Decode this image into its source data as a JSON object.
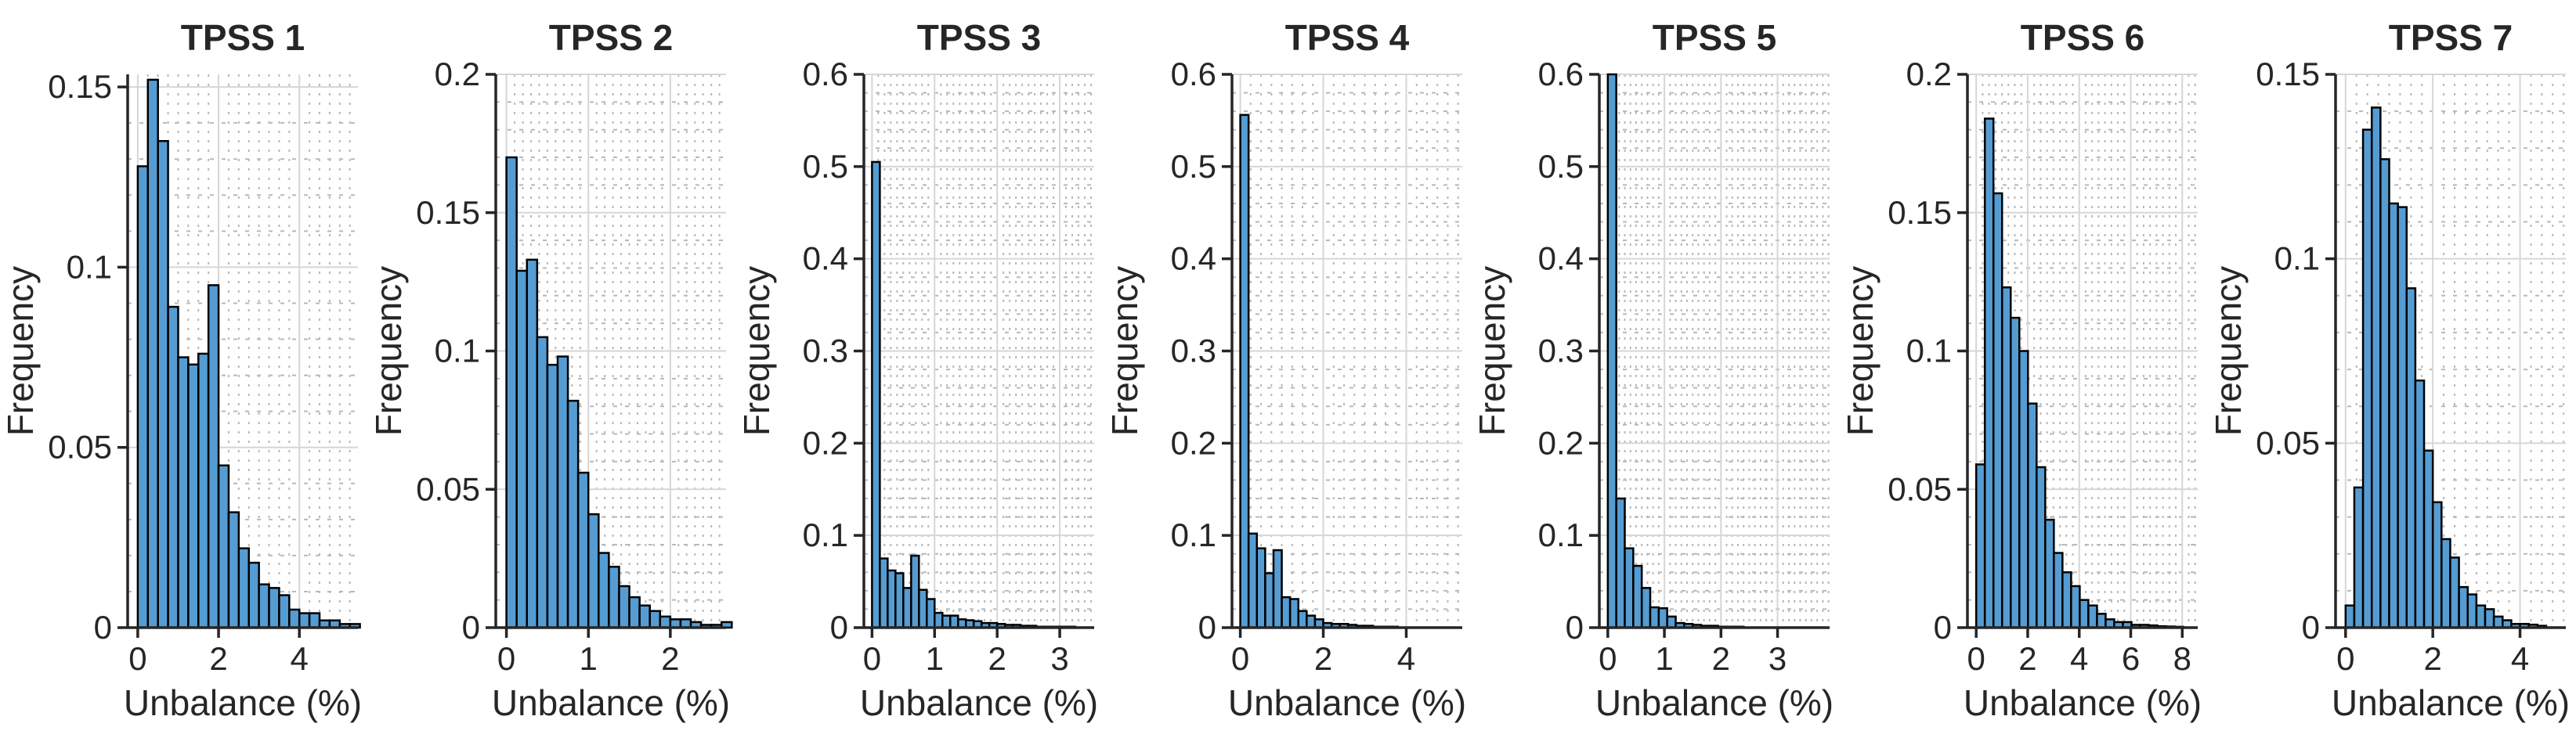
{
  "figure": {
    "background": "#ffffff",
    "xlabel": "Unbalance (%)",
    "ylabel": "Frequency"
  },
  "styles": {
    "bar_fill": "#559CD2",
    "bar_edge": "#000000",
    "axis_color": "#262626",
    "text_color": "#262626",
    "title_color": "#000000",
    "major_grid": "#d6d6d6",
    "minor_grid": "#b8b8b8"
  },
  "chart_data": [
    {
      "type": "bar",
      "subtype": "histogram",
      "title": "TPSS 1",
      "xlabel": "Unbalance (%)",
      "ylabel": "Frequency",
      "bin_start": 0,
      "bin_width": 0.25,
      "values": [
        0.128,
        0.152,
        0.135,
        0.089,
        0.075,
        0.073,
        0.076,
        0.095,
        0.045,
        0.032,
        0.022,
        0.018,
        0.012,
        0.011,
        0.009,
        0.005,
        0.004,
        0.004,
        0.002,
        0.002,
        0.001,
        0.001
      ],
      "xlim": [
        -0.25,
        5.45
      ],
      "xticks": [
        0,
        2,
        4
      ],
      "xtick_labels": [
        "0",
        "2",
        "4"
      ],
      "ylim": [
        0,
        0.1535
      ],
      "yticks": [
        0,
        0.05,
        0.1,
        0.15
      ],
      "ytick_labels": [
        "0",
        "0.05",
        "0.1",
        "0.15"
      ],
      "grid": "major-and-minor",
      "legend": "none"
    },
    {
      "type": "bar",
      "subtype": "histogram",
      "title": "TPSS 2",
      "xlabel": "Unbalance (%)",
      "ylabel": "Frequency",
      "bin_start": 0,
      "bin_width": 0.125,
      "values": [
        0.17,
        0.129,
        0.133,
        0.105,
        0.095,
        0.098,
        0.082,
        0.056,
        0.041,
        0.027,
        0.022,
        0.015,
        0.011,
        0.008,
        0.006,
        0.004,
        0.003,
        0.003,
        0.002,
        0.001,
        0.001,
        0.002
      ],
      "xlim": [
        -0.13,
        2.68
      ],
      "xticks": [
        0,
        1,
        2
      ],
      "xtick_labels": [
        "0",
        "1",
        "2"
      ],
      "ylim": [
        0,
        0.2
      ],
      "yticks": [
        0,
        0.05,
        0.1,
        0.15,
        0.2
      ],
      "ytick_labels": [
        "0",
        "0.05",
        "0.1",
        "0.15",
        "0.2"
      ],
      "grid": "major-and-minor",
      "legend": "none"
    },
    {
      "type": "bar",
      "subtype": "histogram",
      "title": "TPSS 3",
      "xlabel": "Unbalance (%)",
      "ylabel": "Frequency",
      "bin_start": 0,
      "bin_width": 0.125,
      "values": [
        0.505,
        0.075,
        0.062,
        0.059,
        0.043,
        0.078,
        0.041,
        0.031,
        0.016,
        0.013,
        0.013,
        0.009,
        0.008,
        0.007,
        0.005,
        0.005,
        0.004,
        0.003,
        0.003,
        0.002,
        0.002,
        0.001,
        0.001,
        0.001,
        0.001,
        0.001,
        0.0005,
        0.0005
      ],
      "xlim": [
        -0.13,
        3.55
      ],
      "xticks": [
        0,
        1,
        2,
        3
      ],
      "xtick_labels": [
        "0",
        "1",
        "2",
        "3"
      ],
      "ylim": [
        0,
        0.6
      ],
      "yticks": [
        0,
        0.1,
        0.2,
        0.3,
        0.4,
        0.5,
        0.6
      ],
      "ytick_labels": [
        "0",
        "0.1",
        "0.2",
        "0.3",
        "0.4",
        "0.5",
        "0.6"
      ],
      "grid": "major-and-minor",
      "legend": "none"
    },
    {
      "type": "bar",
      "subtype": "histogram",
      "title": "TPSS 4",
      "xlabel": "Unbalance (%)",
      "ylabel": "Frequency",
      "bin_start": 0,
      "bin_width": 0.2,
      "values": [
        0.556,
        0.102,
        0.086,
        0.059,
        0.084,
        0.033,
        0.031,
        0.018,
        0.013,
        0.009,
        0.005,
        0.004,
        0.004,
        0.003,
        0.002,
        0.002,
        0.001,
        0.001,
        0.001,
        0.0005,
        0.0005,
        0.0005,
        0.0003,
        0.0003,
        0.0003,
        0.0002
      ],
      "xlim": [
        -0.2,
        5.35
      ],
      "xticks": [
        0,
        2,
        4
      ],
      "xtick_labels": [
        "0",
        "2",
        "4"
      ],
      "ylim": [
        0,
        0.6
      ],
      "yticks": [
        0,
        0.1,
        0.2,
        0.3,
        0.4,
        0.5,
        0.6
      ],
      "ytick_labels": [
        "0",
        "0.1",
        "0.2",
        "0.3",
        "0.4",
        "0.5",
        "0.6"
      ],
      "grid": "major-and-minor",
      "legend": "none"
    },
    {
      "type": "bar",
      "subtype": "histogram",
      "title": "TPSS 5",
      "xlabel": "Unbalance (%)",
      "ylabel": "Frequency",
      "bin_start": 0,
      "bin_width": 0.15,
      "values": [
        0.6,
        0.14,
        0.086,
        0.067,
        0.043,
        0.022,
        0.021,
        0.012,
        0.005,
        0.004,
        0.003,
        0.002,
        0.002,
        0.001,
        0.001,
        0.001,
        0.0005,
        0.0005,
        0.0004,
        0.0003,
        0.0003,
        0.0002,
        0.0002,
        0.0002,
        0.0001,
        0.0001
      ],
      "xlim": [
        -0.15,
        3.92
      ],
      "xticks": [
        0,
        1,
        2,
        3
      ],
      "xtick_labels": [
        "0",
        "1",
        "2",
        "3"
      ],
      "ylim": [
        0,
        0.6
      ],
      "yticks": [
        0,
        0.1,
        0.2,
        0.3,
        0.4,
        0.5,
        0.6
      ],
      "ytick_labels": [
        "0",
        "0.1",
        "0.2",
        "0.3",
        "0.4",
        "0.5",
        "0.6"
      ],
      "grid": "major-and-minor",
      "legend": "none"
    },
    {
      "type": "bar",
      "subtype": "histogram",
      "title": "TPSS 6",
      "xlabel": "Unbalance (%)",
      "ylabel": "Frequency",
      "bin_start": 0,
      "bin_width": 0.335,
      "values": [
        0.059,
        0.184,
        0.157,
        0.123,
        0.112,
        0.1,
        0.081,
        0.058,
        0.039,
        0.027,
        0.02,
        0.015,
        0.01,
        0.008,
        0.005,
        0.003,
        0.002,
        0.002,
        0.001,
        0.001,
        0.0008,
        0.0005,
        0.0004,
        0.0003
      ],
      "xlim": [
        -0.34,
        8.6
      ],
      "xticks": [
        0,
        2,
        4,
        6,
        8
      ],
      "xtick_labels": [
        "0",
        "2",
        "4",
        "6",
        "8"
      ],
      "ylim": [
        0,
        0.2
      ],
      "yticks": [
        0,
        0.05,
        0.1,
        0.15,
        0.2
      ],
      "ytick_labels": [
        "0",
        "0.05",
        "0.1",
        "0.15",
        "0.2"
      ],
      "grid": "major-and-minor",
      "legend": "none"
    },
    {
      "type": "bar",
      "subtype": "histogram",
      "title": "TPSS 7",
      "xlabel": "Unbalance (%)",
      "ylabel": "Frequency",
      "bin_start": 0,
      "bin_width": 0.2,
      "values": [
        0.006,
        0.038,
        0.135,
        0.141,
        0.127,
        0.115,
        0.114,
        0.092,
        0.067,
        0.048,
        0.034,
        0.024,
        0.019,
        0.011,
        0.009,
        0.006,
        0.005,
        0.003,
        0.002,
        0.001,
        0.001,
        0.0008,
        0.0005
      ],
      "xlim": [
        -0.23,
        5.05
      ],
      "xticks": [
        0,
        2,
        4
      ],
      "xtick_labels": [
        "0",
        "2",
        "4"
      ],
      "ylim": [
        0,
        0.15
      ],
      "yticks": [
        0,
        0.05,
        0.1,
        0.15
      ],
      "ytick_labels": [
        "0",
        "0.05",
        "0.1",
        "0.15"
      ],
      "grid": "major-and-minor",
      "legend": "none"
    }
  ]
}
